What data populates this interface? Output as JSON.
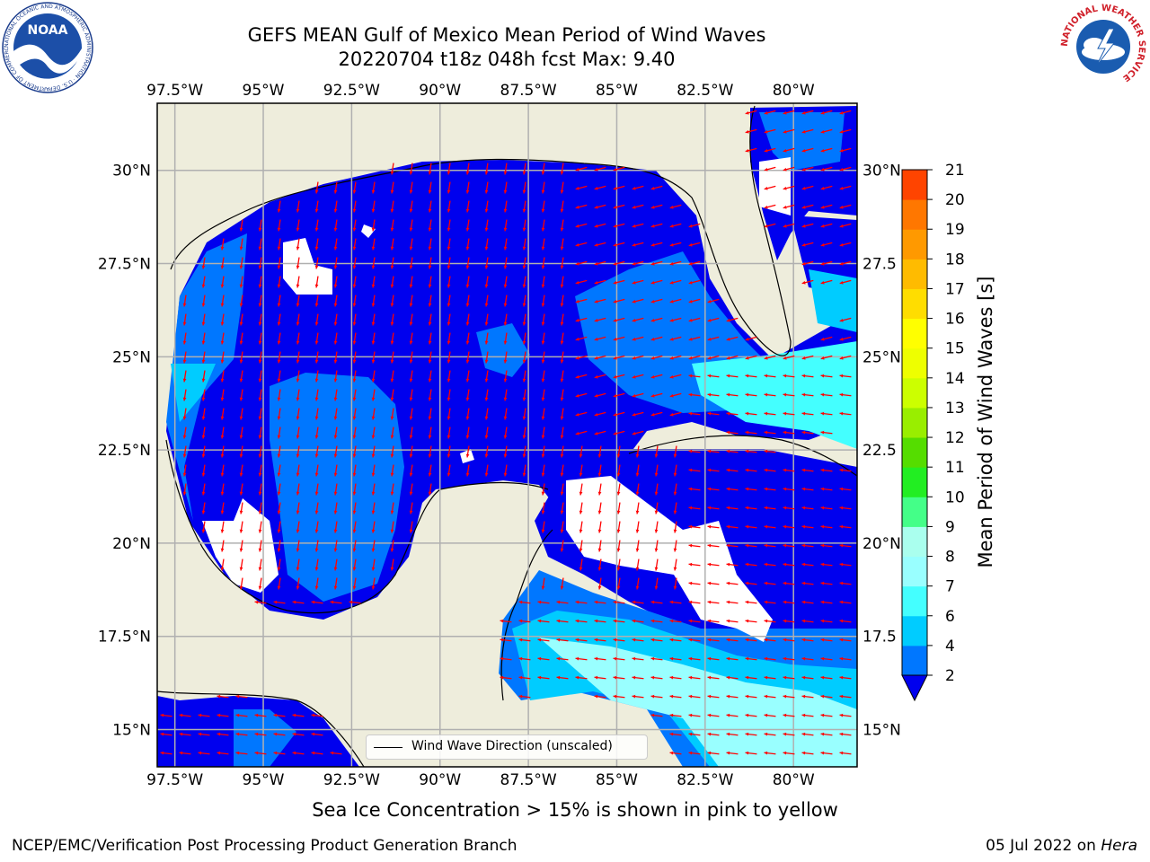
{
  "header": {
    "title_line1": "GEFS MEAN Gulf of Mexico Mean Period of Wind Waves",
    "title_line2": "20220704 t18z 048h fcst   Max: 9.40"
  },
  "logos": {
    "noaa_text": "NOAA",
    "noaa_ring_text": "NATIONAL OCEANIC AND ATMOSPHERIC ADMINISTRATION · U.S. DEPARTMENT OF COMMERCE",
    "nws_ring_text": "NATIONAL WEATHER SERVICE"
  },
  "map": {
    "lon_labels": [
      "97.5°W",
      "95°W",
      "92.5°W",
      "90°W",
      "87.5°W",
      "85°W",
      "82.5°W",
      "80°W"
    ],
    "lat_labels_left": [
      "30°N",
      "27.5°N",
      "25°N",
      "22.5°N",
      "20°N",
      "17.5°N",
      "15°N"
    ],
    "lat_labels_right": [
      "30°N",
      "27.5",
      "25°N",
      "22.5",
      "20°N",
      "17.5",
      "15°N"
    ],
    "lon_range": [
      -98,
      -78.2
    ],
    "lat_range": [
      14,
      31.8
    ],
    "colors": {
      "land": "#eeeddc",
      "deep_blue": "#0000ee",
      "arrow": "#ff0000",
      "grid": "#b0b0b0"
    }
  },
  "legend": {
    "label": "Wind Wave Direction (unscaled)"
  },
  "colorbar": {
    "label": "Mean Period of Wind Waves [s]",
    "ticks": [
      "2",
      "4",
      "6",
      "7",
      "8",
      "9",
      "10",
      "11",
      "12",
      "13",
      "14",
      "15",
      "16",
      "17",
      "18",
      "19",
      "20",
      "21"
    ],
    "colors": [
      "#0077ff",
      "#00ccff",
      "#44ffff",
      "#99ffff",
      "#aaffee",
      "#44ff88",
      "#22ee22",
      "#55dd00",
      "#99ee00",
      "#ccff00",
      "#eeff00",
      "#ffff00",
      "#ffdd00",
      "#ffbb00",
      "#ff9900",
      "#ff7700",
      "#ff4400",
      "#ff1100"
    ],
    "extend_color": "#0000ee"
  },
  "notes": {
    "ice": "Sea Ice Concentration > 15% is shown in pink to yellow"
  },
  "footer": {
    "left": "NCEP/EMC/Verification Post Processing Product Generation Branch",
    "right_date": "05 Jul 2022 on ",
    "right_machine": "Hera"
  }
}
